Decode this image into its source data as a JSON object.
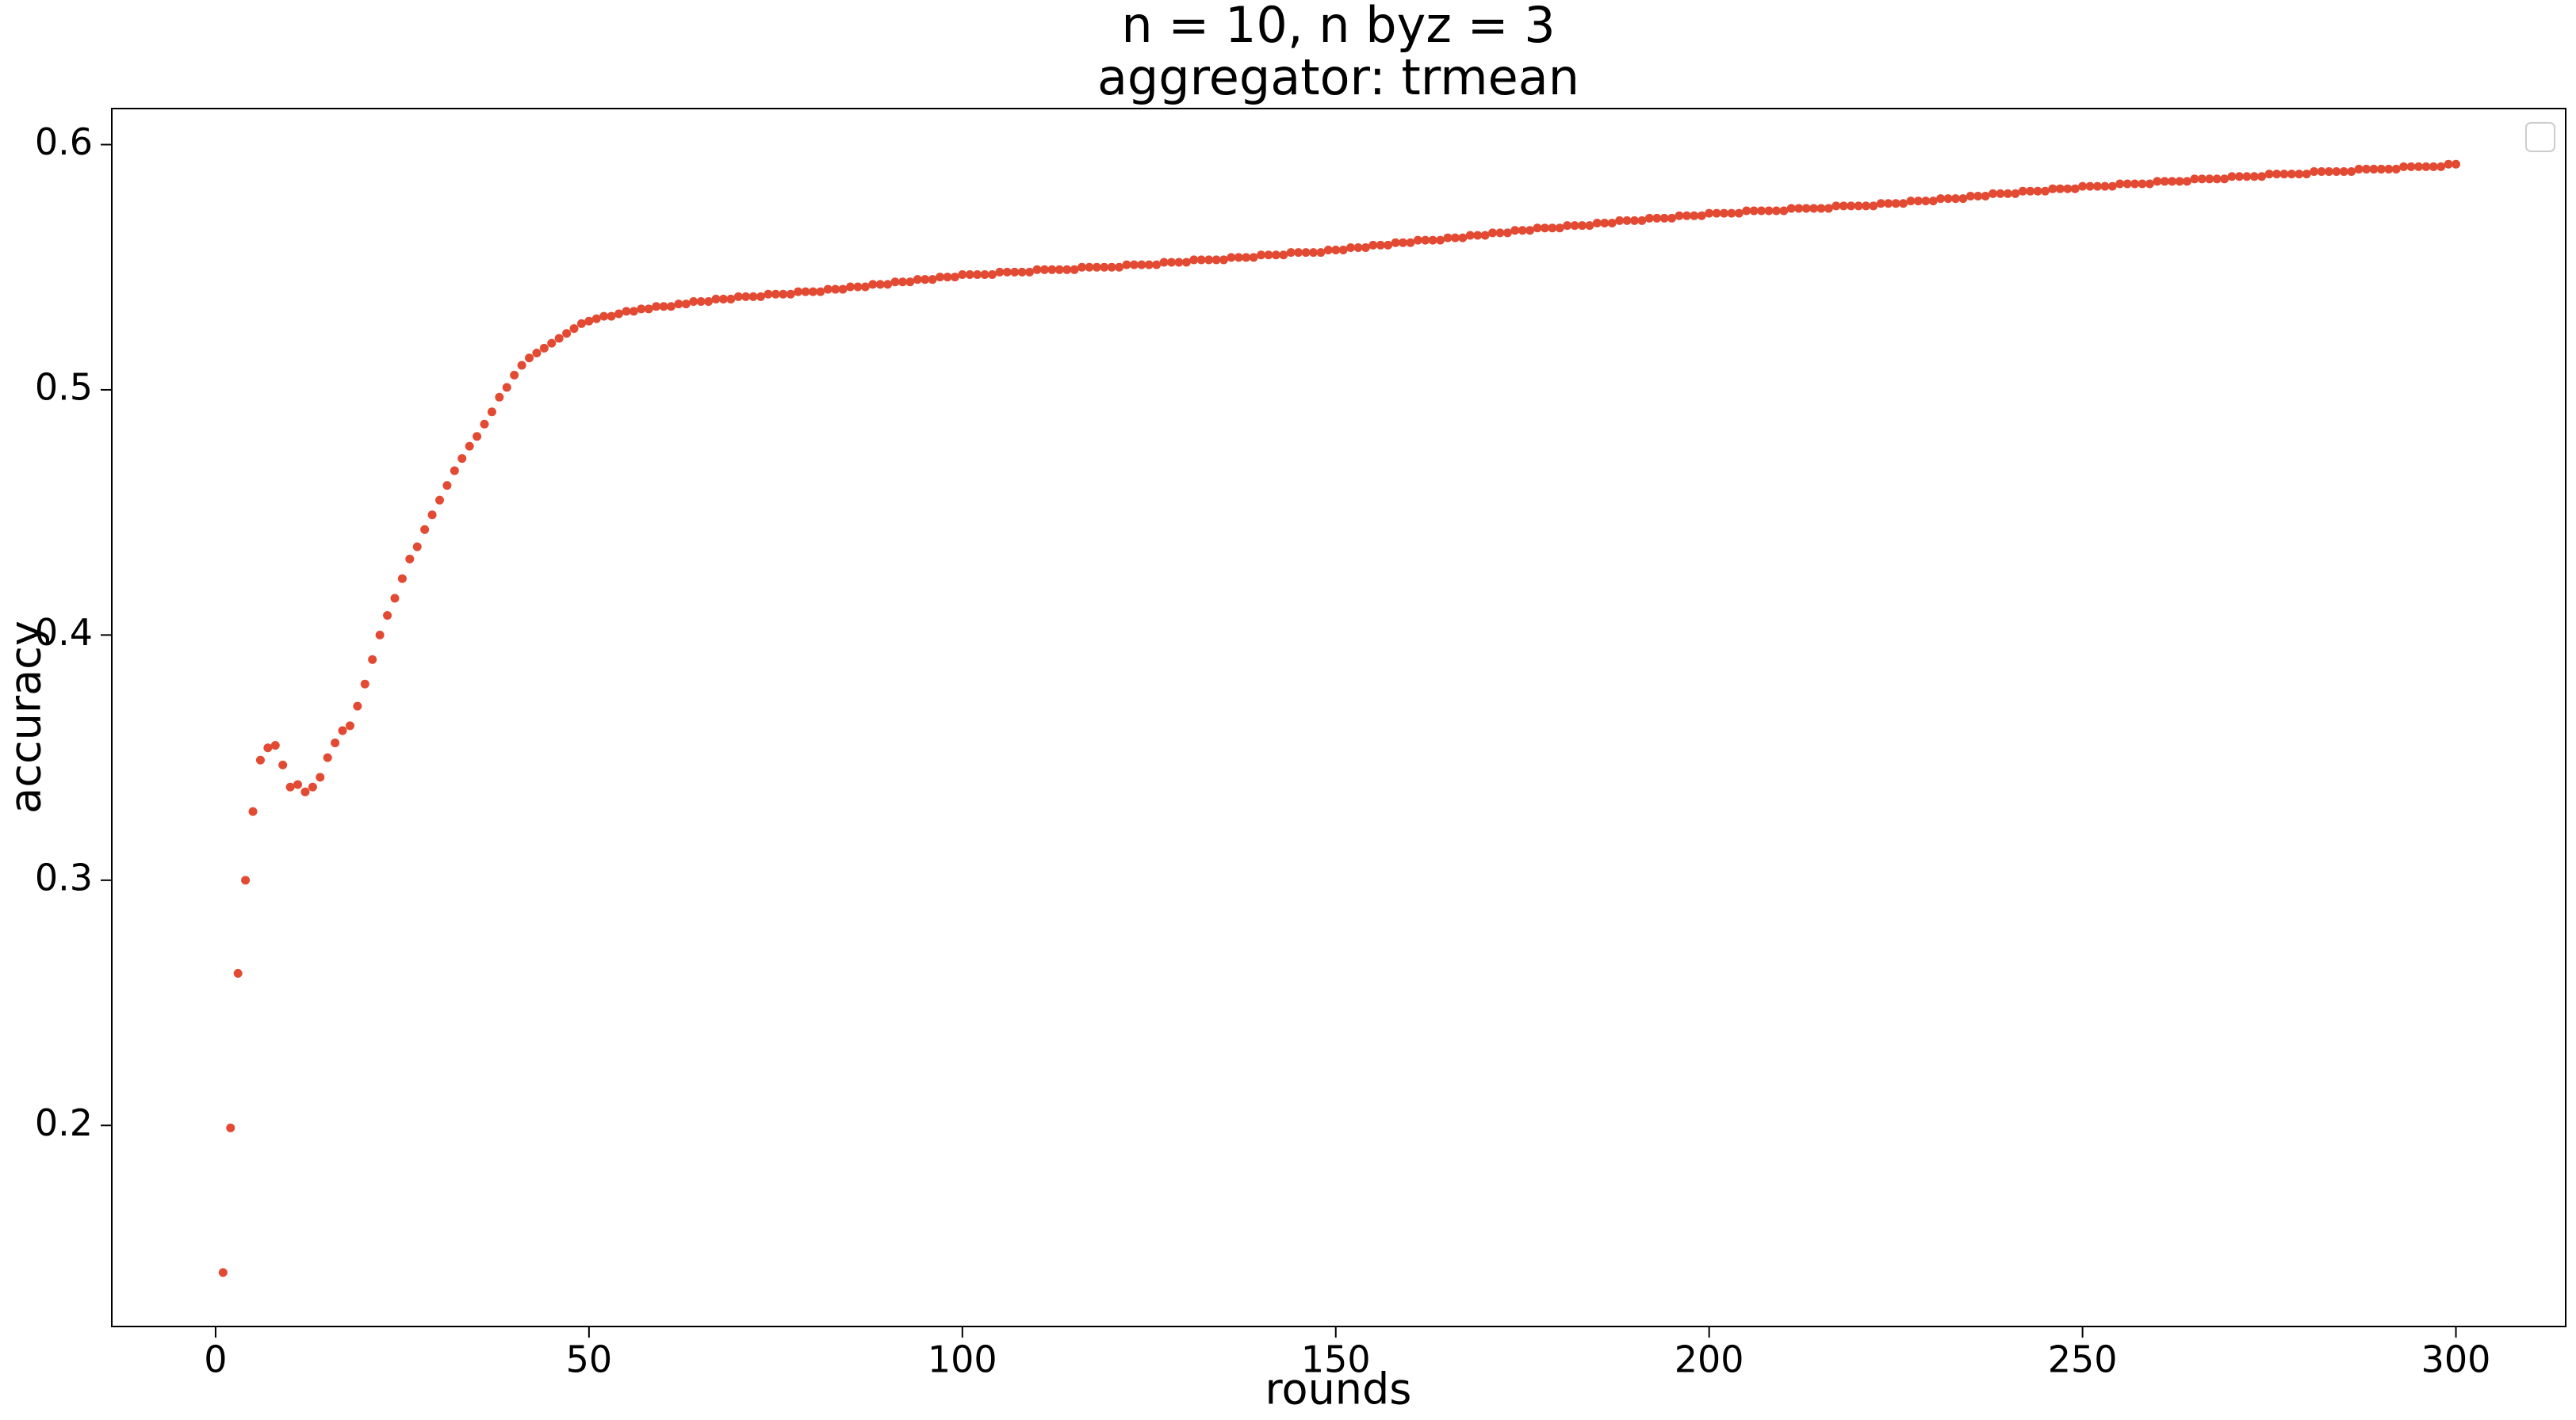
{
  "chart_data": {
    "type": "scatter",
    "title": [
      "n = 10, n byz = 3",
      "aggregator: trmean"
    ],
    "xlabel": "rounds",
    "ylabel": "accuracy",
    "xlim": [
      -13.9,
      314.7
    ],
    "ylim": [
      0.118,
      0.6147
    ],
    "xticks": [
      0,
      50,
      100,
      150,
      200,
      250,
      300
    ],
    "yticks": [
      0.2,
      0.3,
      0.4,
      0.5,
      0.6
    ],
    "grid": false,
    "series": [
      {
        "color": "#e24a33",
        "x": [
          1,
          2,
          3,
          4,
          5,
          6,
          7,
          8,
          9,
          10,
          11,
          12,
          13,
          14,
          15,
          16,
          17,
          18,
          19,
          20,
          21,
          22,
          23,
          24,
          25,
          26,
          27,
          28,
          29,
          30,
          31,
          32,
          33,
          34,
          35,
          36,
          37,
          38,
          39,
          40,
          41,
          42,
          43,
          44,
          45,
          46,
          47,
          48,
          49,
          50,
          51,
          52,
          53,
          54,
          55,
          56,
          57,
          58,
          59,
          60,
          61,
          62,
          63,
          64,
          65,
          66,
          67,
          68,
          69,
          70,
          71,
          72,
          73,
          74,
          75,
          76,
          77,
          78,
          79,
          80,
          81,
          82,
          83,
          84,
          85,
          86,
          87,
          88,
          89,
          90,
          91,
          92,
          93,
          94,
          95,
          96,
          97,
          98,
          99,
          100,
          101,
          102,
          103,
          104,
          105,
          106,
          107,
          108,
          109,
          110,
          111,
          112,
          113,
          114,
          115,
          116,
          117,
          118,
          119,
          120,
          121,
          122,
          123,
          124,
          125,
          126,
          127,
          128,
          129,
          130,
          131,
          132,
          133,
          134,
          135,
          136,
          137,
          138,
          139,
          140,
          141,
          142,
          143,
          144,
          145,
          146,
          147,
          148,
          149,
          150,
          151,
          152,
          153,
          154,
          155,
          156,
          157,
          158,
          159,
          160,
          161,
          162,
          163,
          164,
          165,
          166,
          167,
          168,
          169,
          170,
          171,
          172,
          173,
          174,
          175,
          176,
          177,
          178,
          179,
          180,
          181,
          182,
          183,
          184,
          185,
          186,
          187,
          188,
          189,
          190,
          191,
          192,
          193,
          194,
          195,
          196,
          197,
          198,
          199,
          200,
          201,
          202,
          203,
          204,
          205,
          206,
          207,
          208,
          209,
          210,
          211,
          212,
          213,
          214,
          215,
          216,
          217,
          218,
          219,
          220,
          221,
          222,
          223,
          224,
          225,
          226,
          227,
          228,
          229,
          230,
          231,
          232,
          233,
          234,
          235,
          236,
          237,
          238,
          239,
          240,
          241,
          242,
          243,
          244,
          245,
          246,
          247,
          248,
          249,
          250,
          251,
          252,
          253,
          254,
          255,
          256,
          257,
          258,
          259,
          260,
          261,
          262,
          263,
          264,
          265,
          266,
          267,
          268,
          269,
          270,
          271,
          272,
          273,
          274,
          275,
          276,
          277,
          278,
          279,
          280,
          281,
          282,
          283,
          284,
          285,
          286,
          287,
          288,
          289,
          290,
          291,
          292,
          293,
          294,
          295,
          296,
          297,
          298,
          299,
          300
        ],
        "values": [
          0.14,
          0.199,
          0.262,
          0.3,
          0.328,
          0.349,
          0.354,
          0.355,
          0.347,
          0.338,
          0.339,
          0.336,
          0.338,
          0.342,
          0.35,
          0.356,
          0.361,
          0.363,
          0.371,
          0.38,
          0.39,
          0.4,
          0.408,
          0.415,
          0.423,
          0.431,
          0.436,
          0.443,
          0.449,
          0.455,
          0.461,
          0.467,
          0.472,
          0.477,
          0.481,
          0.486,
          0.491,
          0.497,
          0.501,
          0.506,
          0.51,
          0.513,
          0.515,
          0.517,
          0.519,
          0.521,
          0.523,
          0.525,
          0.527,
          0.528,
          0.529,
          0.53,
          0.53,
          0.531,
          0.532,
          0.532,
          0.533,
          0.533,
          0.534,
          0.534,
          0.534,
          0.535,
          0.535,
          0.536,
          0.536,
          0.536,
          0.537,
          0.537,
          0.537,
          0.538,
          0.538,
          0.538,
          0.538,
          0.539,
          0.539,
          0.539,
          0.539,
          0.54,
          0.54,
          0.54,
          0.54,
          0.541,
          0.541,
          0.541,
          0.542,
          0.542,
          0.542,
          0.543,
          0.543,
          0.543,
          0.544,
          0.544,
          0.544,
          0.545,
          0.545,
          0.545,
          0.546,
          0.546,
          0.546,
          0.547,
          0.547,
          0.547,
          0.547,
          0.547,
          0.548,
          0.548,
          0.548,
          0.548,
          0.548,
          0.549,
          0.549,
          0.549,
          0.549,
          0.549,
          0.549,
          0.55,
          0.55,
          0.55,
          0.55,
          0.55,
          0.55,
          0.551,
          0.551,
          0.551,
          0.551,
          0.551,
          0.552,
          0.552,
          0.552,
          0.552,
          0.553,
          0.553,
          0.553,
          0.553,
          0.553,
          0.554,
          0.554,
          0.554,
          0.554,
          0.555,
          0.555,
          0.555,
          0.555,
          0.556,
          0.556,
          0.556,
          0.556,
          0.556,
          0.557,
          0.557,
          0.557,
          0.558,
          0.558,
          0.558,
          0.559,
          0.559,
          0.559,
          0.56,
          0.56,
          0.56,
          0.561,
          0.561,
          0.561,
          0.561,
          0.562,
          0.562,
          0.562,
          0.563,
          0.563,
          0.563,
          0.564,
          0.564,
          0.564,
          0.565,
          0.565,
          0.565,
          0.566,
          0.566,
          0.566,
          0.566,
          0.567,
          0.567,
          0.567,
          0.567,
          0.568,
          0.568,
          0.568,
          0.569,
          0.569,
          0.569,
          0.569,
          0.57,
          0.57,
          0.57,
          0.57,
          0.571,
          0.571,
          0.571,
          0.571,
          0.572,
          0.572,
          0.572,
          0.572,
          0.572,
          0.573,
          0.573,
          0.573,
          0.573,
          0.573,
          0.573,
          0.574,
          0.574,
          0.574,
          0.574,
          0.574,
          0.574,
          0.575,
          0.575,
          0.575,
          0.575,
          0.575,
          0.575,
          0.576,
          0.576,
          0.576,
          0.576,
          0.577,
          0.577,
          0.577,
          0.577,
          0.578,
          0.578,
          0.578,
          0.578,
          0.579,
          0.579,
          0.579,
          0.58,
          0.58,
          0.58,
          0.58,
          0.581,
          0.581,
          0.581,
          0.581,
          0.582,
          0.582,
          0.582,
          0.582,
          0.583,
          0.583,
          0.583,
          0.583,
          0.583,
          0.584,
          0.584,
          0.584,
          0.584,
          0.584,
          0.585,
          0.585,
          0.585,
          0.585,
          0.585,
          0.586,
          0.586,
          0.586,
          0.586,
          0.586,
          0.587,
          0.587,
          0.587,
          0.587,
          0.587,
          0.588,
          0.588,
          0.588,
          0.588,
          0.588,
          0.588,
          0.589,
          0.589,
          0.589,
          0.589,
          0.589,
          0.589,
          0.59,
          0.59,
          0.59,
          0.59,
          0.59,
          0.59,
          0.591,
          0.591,
          0.591,
          0.591,
          0.591,
          0.591,
          0.592,
          0.592
        ]
      }
    ]
  }
}
